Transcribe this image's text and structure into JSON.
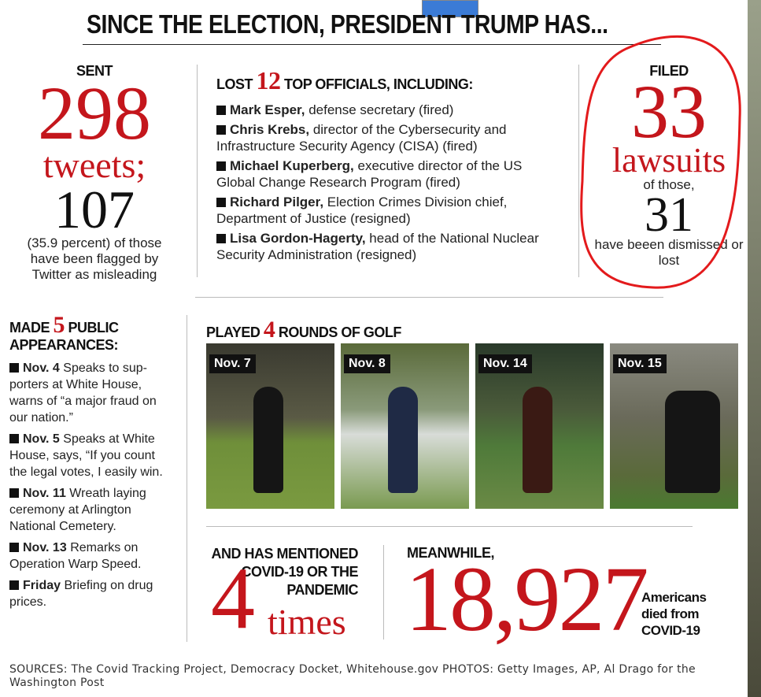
{
  "title": "SINCE THE ELECTION, PRESIDENT TRUMP HAS...",
  "tweets": {
    "label": "SENT",
    "count": 298,
    "unit": "tweets;",
    "flagged": 107,
    "note": "(35.9 percent) of those have been flagged by Twitter as misleading"
  },
  "officials": {
    "heading_pre": "LOST",
    "count": 12,
    "heading_post": "TOP OFFICIALS, INCLUDING:",
    "items": [
      {
        "name": "Mark Esper,",
        "desc": "defense secretary (fired)"
      },
      {
        "name": "Chris Krebs,",
        "desc": "director of the Cybersecurity and Infrastructure Security Agency (CISA) (fired)"
      },
      {
        "name": "Michael Kuperberg,",
        "desc": "executive director of the US Global Change Research Program (fired)"
      },
      {
        "name": "Richard Pilger,",
        "desc": "Election Crimes Division chief, Department of Justice (resigned)"
      },
      {
        "name": "Lisa Gordon-Hagerty,",
        "desc": "head of the National Nuclear Security Administration (resigned)"
      }
    ]
  },
  "lawsuits": {
    "label": "FILED",
    "count": 33,
    "unit": "lawsuits",
    "of_those": "of those,",
    "dismissed": 31,
    "note": "have beeen dismissed or lost"
  },
  "appearances": {
    "heading_pre": "MADE",
    "count": 5,
    "heading_post": "PUBLIC APPEARANCES:",
    "items": [
      {
        "date": "Nov. 4",
        "desc": "Speaks to sup-porters at White House, warns of “a major fraud on our nation.”"
      },
      {
        "date": "Nov. 5",
        "desc": "Speaks at White House, says, “If you count the legal votes, I easily win."
      },
      {
        "date": "Nov. 11",
        "desc": "Wreath laying ceremony at Arlington National Cemetery."
      },
      {
        "date": "Nov. 13",
        "desc": "Remarks on Operation Warp Speed."
      },
      {
        "date": "Friday",
        "desc": "Briefing on drug prices."
      }
    ]
  },
  "golf": {
    "heading_pre": "PLAYED",
    "count": 4,
    "heading_post": "ROUNDS OF GOLF",
    "photos": [
      "Nov. 7",
      "Nov. 8",
      "Nov. 14",
      "Nov. 15"
    ]
  },
  "covid_mentions": {
    "heading": "AND HAS MENTIONED COVID-19 OR THE PANDEMIC",
    "count": 4,
    "unit": "times"
  },
  "deaths": {
    "heading": "MEANWHILE,",
    "count": "18,927",
    "note": "Americans died from COVID-19"
  },
  "sources": "SOURCES: The Covid Tracking Project, Democracy Docket, Whitehouse.gov PHOTOS: Getty Images, AP, Al Drago for the Washington Post"
}
